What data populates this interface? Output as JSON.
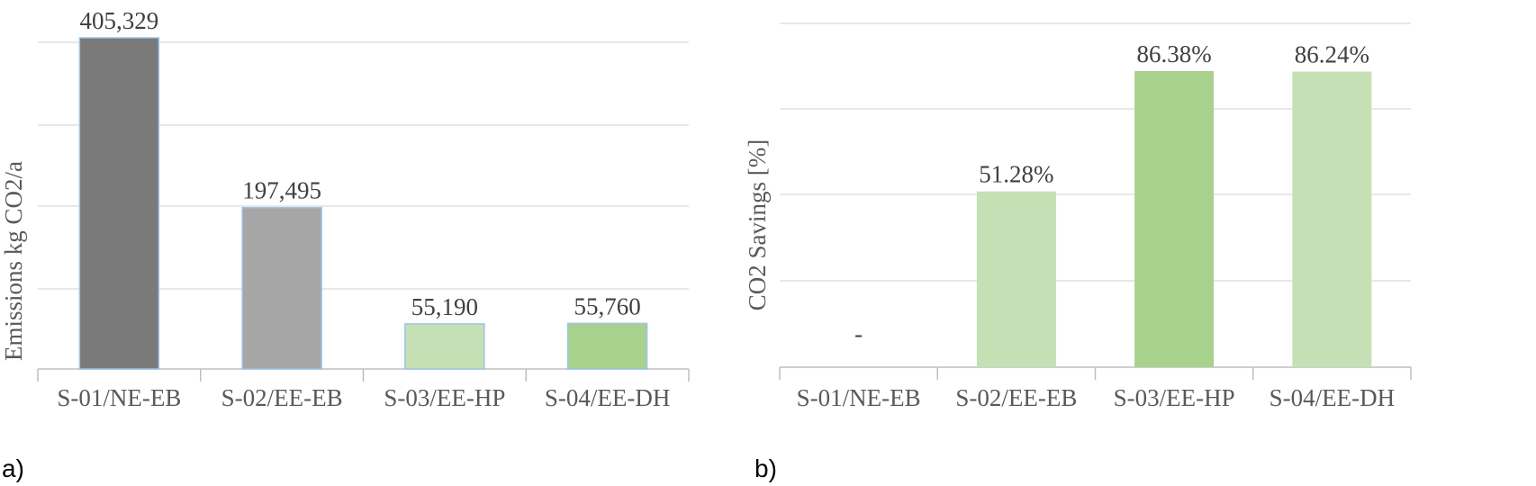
{
  "chart_data": [
    {
      "type": "bar",
      "panel_label": "a)",
      "ylabel": "Emissions kg CO2/a",
      "categories": [
        "S-01/NE-EB",
        "S-02/EE-EB",
        "S-03/EE-HP",
        "S-04/EE-DH"
      ],
      "values": [
        405329,
        197495,
        55190,
        55760
      ],
      "data_labels": [
        "405,329",
        "197,495",
        "55,190",
        "55,760"
      ],
      "bar_colors": [
        "#7a7a7a",
        "#a6a6a6",
        "#c5e0b4",
        "#a9d18e"
      ],
      "bar_outline": "#9dc3e6",
      "ylim": [
        0,
        400000
      ],
      "grid": true
    },
    {
      "type": "bar",
      "panel_label": "b)",
      "ylabel": "CO2 Savings [%]",
      "categories": [
        "S-01/NE-EB",
        "S-02/EE-EB",
        "S-03/EE-HP",
        "S-04/EE-DH"
      ],
      "values": [
        0,
        51.28,
        86.38,
        86.24
      ],
      "data_labels": [
        "-",
        "51.28%",
        "86.38%",
        "86.24%"
      ],
      "bar_colors": [
        "#c5e0b4",
        "#c5e0b4",
        "#a9d18e",
        "#c5e0b4"
      ],
      "ylim": [
        0,
        100
      ],
      "grid": true
    }
  ]
}
